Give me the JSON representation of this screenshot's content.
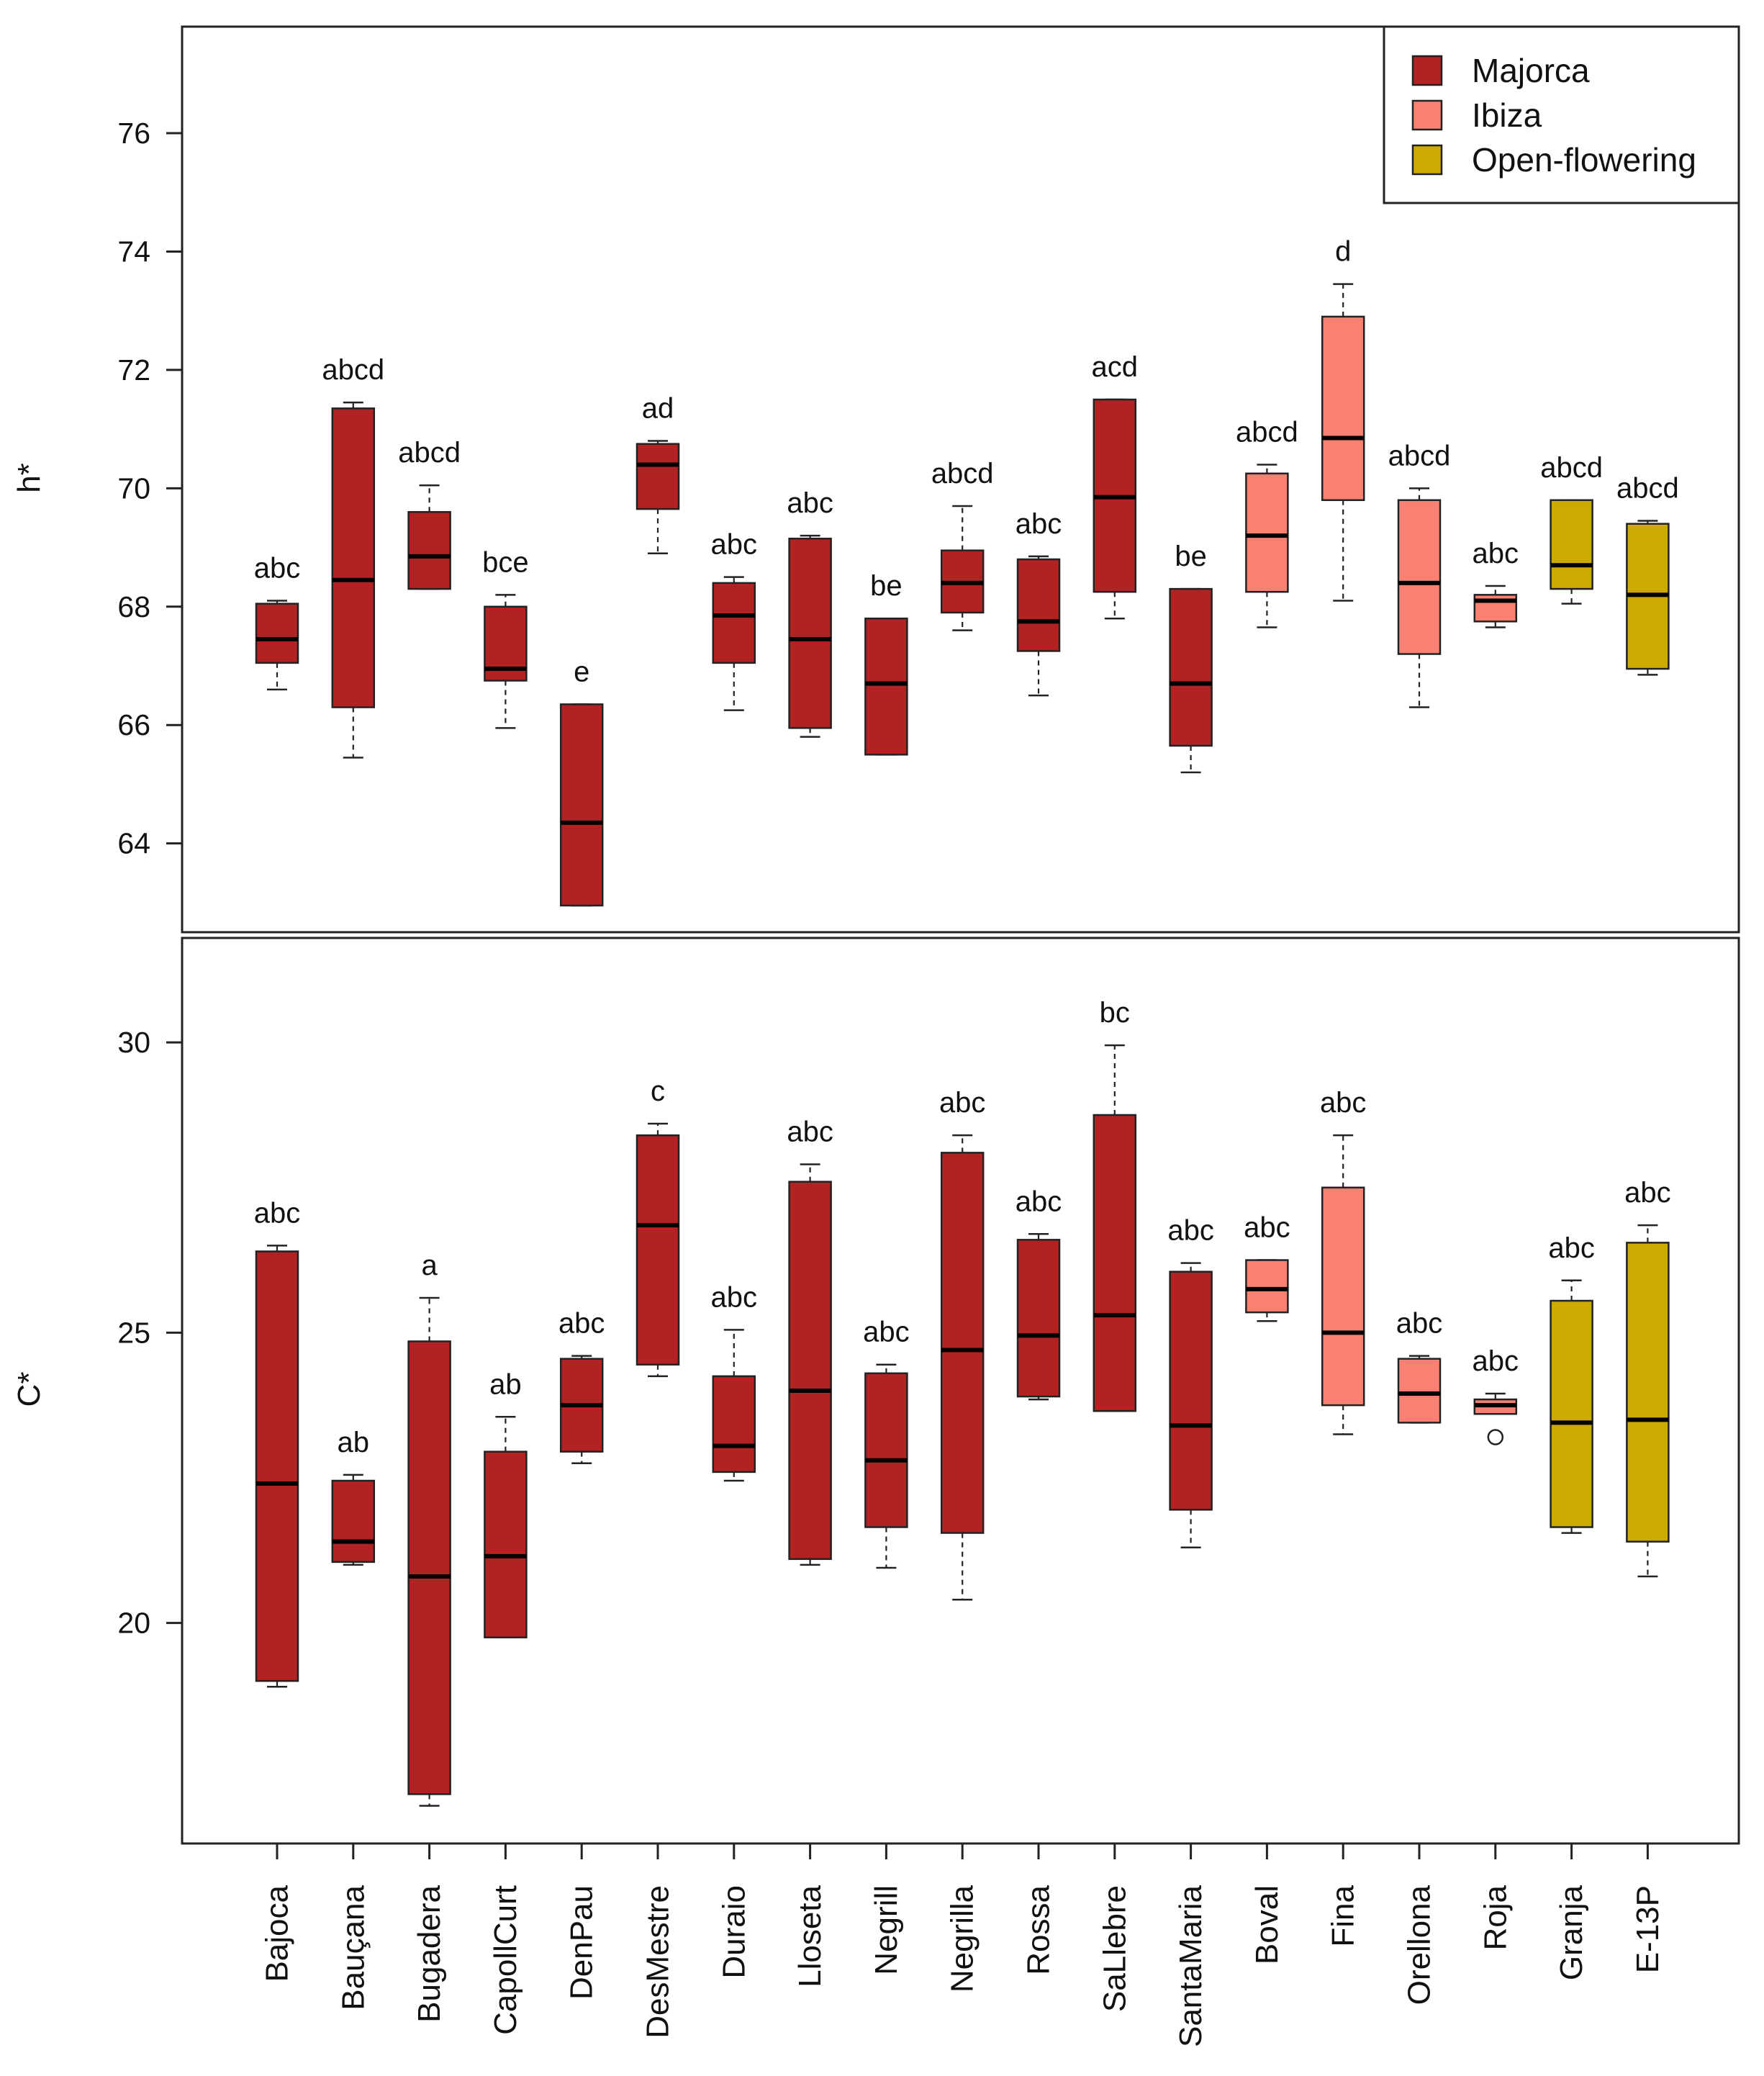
{
  "groups": [
    {
      "name": "Majorca",
      "color": "#B22222"
    },
    {
      "name": "Ibiza",
      "color": "#FA8072"
    },
    {
      "name": "Open-flowering",
      "color": "#CDAA00"
    }
  ],
  "categories": [
    {
      "name": "Bajoca",
      "group": 0
    },
    {
      "name": "Bauçana",
      "group": 0
    },
    {
      "name": "Bugadera",
      "group": 0
    },
    {
      "name": "CapollCurt",
      "group": 0
    },
    {
      "name": "DenPau",
      "group": 0
    },
    {
      "name": "DesMestre",
      "group": 0
    },
    {
      "name": "Duraio",
      "group": 0
    },
    {
      "name": "Lloseta",
      "group": 0
    },
    {
      "name": "Negrill",
      "group": 0
    },
    {
      "name": "Negrilla",
      "group": 0
    },
    {
      "name": "Rossa",
      "group": 0
    },
    {
      "name": "SaLlebre",
      "group": 0
    },
    {
      "name": "SantaMaria",
      "group": 0
    },
    {
      "name": "Boval",
      "group": 1
    },
    {
      "name": "Fina",
      "group": 1
    },
    {
      "name": "Orellona",
      "group": 1
    },
    {
      "name": "Roja",
      "group": 1
    },
    {
      "name": "Granja",
      "group": 2
    },
    {
      "name": "E-13P",
      "group": 2
    }
  ],
  "chart_data": [
    {
      "type": "boxplot",
      "ylabel": "h*",
      "ylim": [
        62.5,
        77.8
      ],
      "yticks": [
        64,
        66,
        68,
        70,
        72,
        74,
        76
      ],
      "legend": "top-right",
      "grid": false,
      "boxes": [
        {
          "min": 66.6,
          "q1": 67.05,
          "median": 67.45,
          "q3": 68.05,
          "max": 68.1,
          "letters": "abc",
          "outliers": []
        },
        {
          "min": 65.45,
          "q1": 66.3,
          "median": 68.45,
          "q3": 71.35,
          "max": 71.45,
          "letters": "abcd",
          "outliers": []
        },
        {
          "min": 68.3,
          "q1": 68.3,
          "median": 68.85,
          "q3": 69.6,
          "max": 70.05,
          "letters": "abcd",
          "outliers": []
        },
        {
          "min": 65.95,
          "q1": 66.75,
          "median": 66.95,
          "q3": 68.0,
          "max": 68.2,
          "letters": "bce",
          "outliers": []
        },
        {
          "min": 62.95,
          "q1": 62.95,
          "median": 64.35,
          "q3": 66.35,
          "max": 66.35,
          "letters": "e",
          "outliers": []
        },
        {
          "min": 68.9,
          "q1": 69.65,
          "median": 70.4,
          "q3": 70.75,
          "max": 70.8,
          "letters": "ad",
          "outliers": []
        },
        {
          "min": 66.25,
          "q1": 67.05,
          "median": 67.85,
          "q3": 68.4,
          "max": 68.5,
          "letters": "abc",
          "outliers": []
        },
        {
          "min": 65.8,
          "q1": 65.95,
          "median": 67.45,
          "q3": 69.15,
          "max": 69.2,
          "letters": "abc",
          "outliers": []
        },
        {
          "min": 65.5,
          "q1": 65.5,
          "median": 66.7,
          "q3": 67.8,
          "max": 67.8,
          "letters": "be",
          "outliers": []
        },
        {
          "min": 67.6,
          "q1": 67.9,
          "median": 68.4,
          "q3": 68.95,
          "max": 69.7,
          "letters": "abcd",
          "outliers": []
        },
        {
          "min": 66.5,
          "q1": 67.25,
          "median": 67.75,
          "q3": 68.8,
          "max": 68.85,
          "letters": "abc",
          "outliers": []
        },
        {
          "min": 67.8,
          "q1": 68.25,
          "median": 69.85,
          "q3": 71.5,
          "max": 71.5,
          "letters": "acd",
          "outliers": []
        },
        {
          "min": 65.2,
          "q1": 65.65,
          "median": 66.7,
          "q3": 68.3,
          "max": 68.3,
          "letters": "be",
          "outliers": []
        },
        {
          "min": 67.65,
          "q1": 68.25,
          "median": 69.2,
          "q3": 70.25,
          "max": 70.4,
          "letters": "abcd",
          "outliers": []
        },
        {
          "min": 68.1,
          "q1": 69.8,
          "median": 70.85,
          "q3": 72.9,
          "max": 73.45,
          "letters": "d",
          "outliers": []
        },
        {
          "min": 66.3,
          "q1": 67.2,
          "median": 68.4,
          "q3": 69.8,
          "max": 70.0,
          "letters": "abcd",
          "outliers": []
        },
        {
          "min": 67.65,
          "q1": 67.75,
          "median": 68.1,
          "q3": 68.2,
          "max": 68.35,
          "letters": "abc",
          "outliers": []
        },
        {
          "min": 68.05,
          "q1": 68.3,
          "median": 68.7,
          "q3": 69.8,
          "max": 69.8,
          "letters": "abcd",
          "outliers": []
        },
        {
          "min": 66.85,
          "q1": 66.95,
          "median": 68.2,
          "q3": 69.4,
          "max": 69.45,
          "letters": "abcd",
          "outliers": []
        }
      ]
    },
    {
      "type": "boxplot",
      "ylabel": "C*",
      "ylim": [
        16.2,
        31.8
      ],
      "yticks": [
        20,
        25,
        30
      ],
      "grid": false,
      "boxes": [
        {
          "min": 18.9,
          "q1": 19.0,
          "median": 22.4,
          "q3": 26.4,
          "max": 26.5,
          "letters": "abc",
          "outliers": []
        },
        {
          "min": 21.0,
          "q1": 21.05,
          "median": 21.4,
          "q3": 22.45,
          "max": 22.55,
          "letters": "ab",
          "outliers": []
        },
        {
          "min": 16.85,
          "q1": 17.05,
          "median": 20.8,
          "q3": 24.85,
          "max": 25.6,
          "letters": "a",
          "outliers": []
        },
        {
          "min": 19.75,
          "q1": 19.75,
          "median": 21.15,
          "q3": 22.95,
          "max": 23.55,
          "letters": "ab",
          "outliers": []
        },
        {
          "min": 22.75,
          "q1": 22.95,
          "median": 23.75,
          "q3": 24.55,
          "max": 24.6,
          "letters": "abc",
          "outliers": []
        },
        {
          "min": 24.25,
          "q1": 24.45,
          "median": 26.85,
          "q3": 28.4,
          "max": 28.6,
          "letters": "c",
          "outliers": []
        },
        {
          "min": 22.45,
          "q1": 22.6,
          "median": 23.05,
          "q3": 24.25,
          "max": 25.05,
          "letters": "abc",
          "outliers": []
        },
        {
          "min": 21.0,
          "q1": 21.1,
          "median": 24.0,
          "q3": 27.6,
          "max": 27.9,
          "letters": "abc",
          "outliers": []
        },
        {
          "min": 20.95,
          "q1": 21.65,
          "median": 22.8,
          "q3": 24.3,
          "max": 24.45,
          "letters": "abc",
          "outliers": []
        },
        {
          "min": 20.4,
          "q1": 21.55,
          "median": 24.7,
          "q3": 28.1,
          "max": 28.4,
          "letters": "abc",
          "outliers": []
        },
        {
          "min": 23.85,
          "q1": 23.9,
          "median": 24.95,
          "q3": 26.6,
          "max": 26.7,
          "letters": "abc",
          "outliers": []
        },
        {
          "min": 23.65,
          "q1": 23.65,
          "median": 25.3,
          "q3": 28.75,
          "max": 29.95,
          "letters": "bc",
          "outliers": []
        },
        {
          "min": 21.3,
          "q1": 21.95,
          "median": 23.4,
          "q3": 26.05,
          "max": 26.2,
          "letters": "abc",
          "outliers": []
        },
        {
          "min": 25.2,
          "q1": 25.35,
          "median": 25.75,
          "q3": 26.25,
          "max": 26.25,
          "letters": "abc",
          "outliers": []
        },
        {
          "min": 23.25,
          "q1": 23.75,
          "median": 25.0,
          "q3": 27.5,
          "max": 28.4,
          "letters": "abc",
          "outliers": []
        },
        {
          "min": 23.45,
          "q1": 23.45,
          "median": 23.95,
          "q3": 24.55,
          "max": 24.6,
          "letters": "abc",
          "outliers": []
        },
        {
          "min": 23.6,
          "q1": 23.6,
          "median": 23.75,
          "q3": 23.85,
          "max": 23.95,
          "letters": "abc",
          "outliers": [
            23.2
          ]
        },
        {
          "min": 21.55,
          "q1": 21.65,
          "median": 23.45,
          "q3": 25.55,
          "max": 25.9,
          "letters": "abc",
          "outliers": []
        },
        {
          "min": 20.8,
          "q1": 21.4,
          "median": 23.5,
          "q3": 26.55,
          "max": 26.85,
          "letters": "abc",
          "outliers": []
        }
      ]
    }
  ]
}
